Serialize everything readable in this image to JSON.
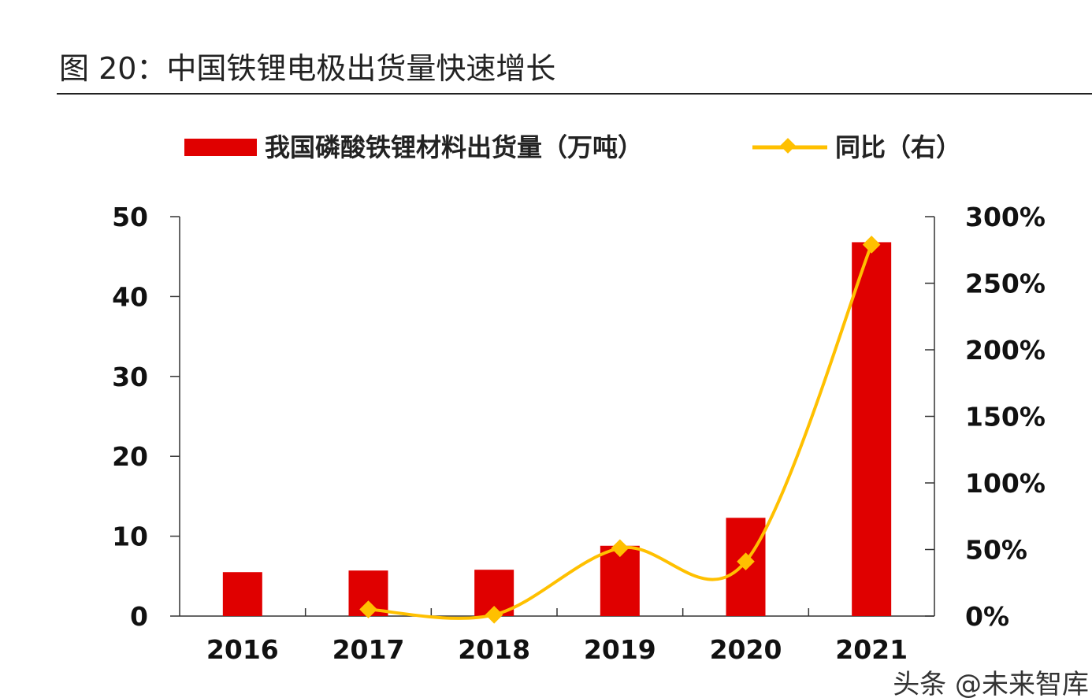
{
  "figure_title": "图 20：中国铁锂电极出货量快速增长",
  "watermark": "头条 @未来智库",
  "chart_data": {
    "type": "bar+line",
    "categories": [
      "2016",
      "2017",
      "2018",
      "2019",
      "2020",
      "2021"
    ],
    "series": [
      {
        "name": "我国磷酸铁锂材料出货量（万吨）",
        "type": "bar",
        "axis": "left",
        "color": "#e00000",
        "values": [
          5.5,
          5.7,
          5.8,
          8.8,
          12.3,
          46.8
        ]
      },
      {
        "name": "同比（右）",
        "type": "line",
        "axis": "right",
        "color": "#ffc000",
        "marker": "diamond",
        "values": [
          null,
          5,
          1,
          51,
          41,
          279
        ]
      }
    ],
    "left_axis": {
      "ylim": [
        0,
        50
      ],
      "ticks": [
        "0",
        "10",
        "20",
        "30",
        "40",
        "50"
      ]
    },
    "right_axis": {
      "ylim": [
        0,
        300
      ],
      "ticks": [
        "0%",
        "50%",
        "100%",
        "150%",
        "200%",
        "250%",
        "300%"
      ]
    },
    "legend_position": "top",
    "grid": false
  }
}
